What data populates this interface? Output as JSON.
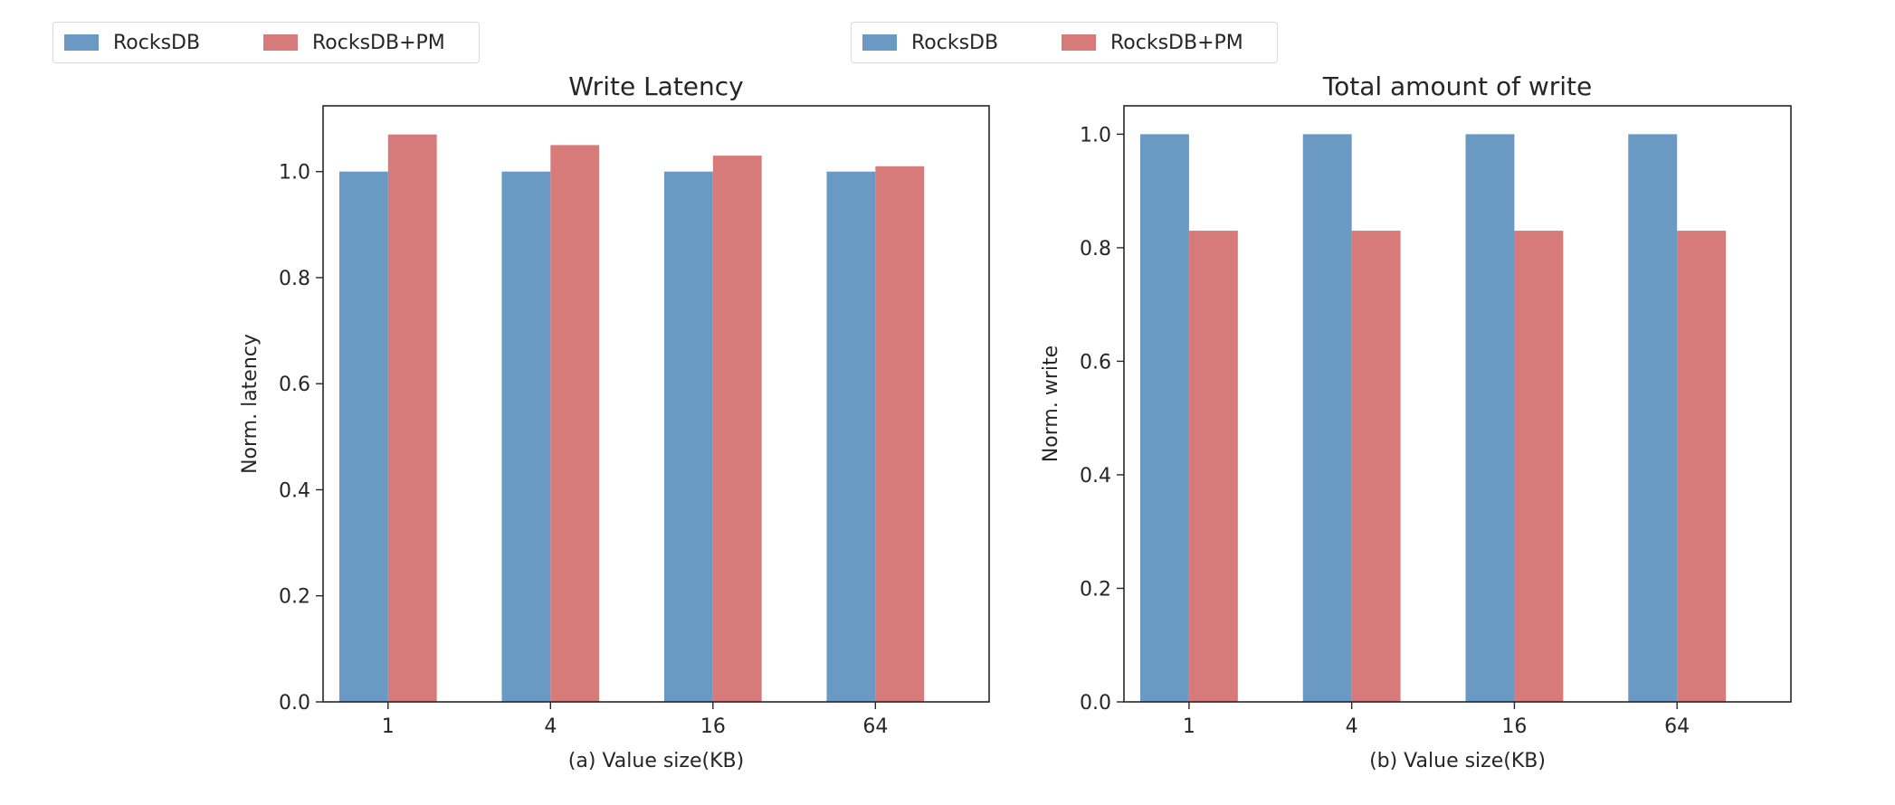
{
  "legends": [
    {
      "items": [
        {
          "label": "RocksDB",
          "color": "#6a9ac4"
        },
        {
          "label": "RocksDB+PM",
          "color": "#d67a7a"
        }
      ]
    },
    {
      "items": [
        {
          "label": "RocksDB",
          "color": "#6a9ac4"
        },
        {
          "label": "RocksDB+PM",
          "color": "#d67a7a"
        }
      ]
    }
  ],
  "chart_data": [
    {
      "type": "bar",
      "title": "Write Latency",
      "xlabel": "(a) Value size(KB)",
      "ylabel": "Norm. latency",
      "categories": [
        "1",
        "4",
        "16",
        "64"
      ],
      "series": [
        {
          "name": "RocksDB",
          "color": "#6a9ac4",
          "values": [
            1.0,
            1.0,
            1.0,
            1.0
          ]
        },
        {
          "name": "RocksDB+PM",
          "color": "#d67a7a",
          "values": [
            1.07,
            1.05,
            1.03,
            1.01
          ]
        }
      ],
      "ylim": [
        0,
        1.124
      ],
      "yticks": [
        "0.0",
        "0.2",
        "0.4",
        "0.6",
        "0.8",
        "1.0"
      ],
      "legend": "top-left"
    },
    {
      "type": "bar",
      "title": "Total amount of write",
      "xlabel": "(b) Value size(KB)",
      "ylabel": "Norm. write",
      "categories": [
        "1",
        "4",
        "16",
        "64"
      ],
      "series": [
        {
          "name": "RocksDB",
          "color": "#6a9ac4",
          "values": [
            1.0,
            1.0,
            1.0,
            1.0
          ]
        },
        {
          "name": "RocksDB+PM",
          "color": "#d67a7a",
          "values": [
            0.83,
            0.83,
            0.83,
            0.83
          ]
        }
      ],
      "ylim": [
        0,
        1.05
      ],
      "yticks": [
        "0.0",
        "0.2",
        "0.4",
        "0.6",
        "0.8",
        "1.0"
      ],
      "legend": "top-center"
    }
  ]
}
